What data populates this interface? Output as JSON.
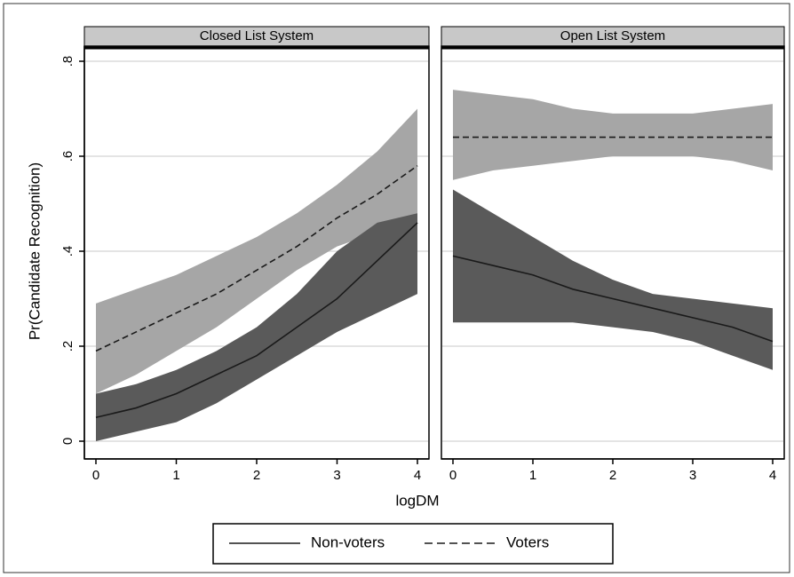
{
  "chart_data": [
    {
      "type": "line",
      "title": "Closed List System",
      "x_label": "logDM",
      "y_label": "Pr(Candidate Recognition)",
      "x": [
        0,
        0.5,
        1,
        1.5,
        2,
        2.5,
        3,
        3.5,
        4
      ],
      "xlim": [
        0,
        4
      ],
      "xticks": [
        0,
        1,
        2,
        3,
        4
      ],
      "ylim": [
        0,
        0.8
      ],
      "yticks": [
        0,
        {
          "value": 0.2,
          "label": ".2"
        },
        {
          "value": 0.4,
          "label": ".4"
        },
        {
          "value": 0.6,
          "label": ".6"
        },
        {
          "value": 0.8,
          "label": ".8"
        }
      ],
      "grid": true,
      "legend": "bottom",
      "series": [
        {
          "name": "Voters",
          "color": "#1a1a1a",
          "dashed": true,
          "band_color": "#a6a6a6",
          "values": [
            0.19,
            0.23,
            0.27,
            0.31,
            0.36,
            0.41,
            0.47,
            0.52,
            0.58
          ],
          "lower": [
            0.1,
            0.14,
            0.19,
            0.24,
            0.3,
            0.36,
            0.41,
            0.44,
            0.47
          ],
          "upper": [
            0.29,
            0.32,
            0.35,
            0.39,
            0.43,
            0.48,
            0.54,
            0.61,
            0.7
          ]
        },
        {
          "name": "Non-voters",
          "color": "#1a1a1a",
          "dashed": false,
          "band_color": "#5a5a5a",
          "values": [
            0.05,
            0.07,
            0.1,
            0.14,
            0.18,
            0.24,
            0.3,
            0.38,
            0.46
          ],
          "lower": [
            0.0,
            0.02,
            0.04,
            0.08,
            0.13,
            0.18,
            0.23,
            0.27,
            0.31
          ],
          "upper": [
            0.1,
            0.12,
            0.15,
            0.19,
            0.24,
            0.31,
            0.4,
            0.46,
            0.48
          ]
        }
      ]
    },
    {
      "type": "line",
      "title": "Open List System",
      "x": [
        0,
        0.5,
        1,
        1.5,
        2,
        2.5,
        3,
        3.5,
        4
      ],
      "xlim": [
        0,
        4
      ],
      "xticks": [
        0,
        1,
        2,
        3,
        4
      ],
      "ylim": [
        0,
        0.8
      ],
      "grid": true,
      "series": [
        {
          "color": "#1a1a1a",
          "dashed": true,
          "band_color": "#a6a6a6",
          "values": [
            0.64,
            0.64,
            0.64,
            0.64,
            0.64,
            0.64,
            0.64,
            0.64,
            0.64
          ],
          "lower": [
            0.55,
            0.57,
            0.58,
            0.59,
            0.6,
            0.6,
            0.6,
            0.59,
            0.57
          ],
          "upper": [
            0.74,
            0.73,
            0.72,
            0.7,
            0.69,
            0.69,
            0.69,
            0.7,
            0.71
          ]
        },
        {
          "color": "#1a1a1a",
          "dashed": false,
          "band_color": "#5a5a5a",
          "values": [
            0.39,
            0.37,
            0.35,
            0.32,
            0.3,
            0.28,
            0.26,
            0.24,
            0.21
          ],
          "lower": [
            0.25,
            0.25,
            0.25,
            0.25,
            0.24,
            0.23,
            0.21,
            0.18,
            0.15
          ],
          "upper": [
            0.53,
            0.48,
            0.43,
            0.38,
            0.34,
            0.31,
            0.3,
            0.29,
            0.28
          ]
        }
      ]
    }
  ]
}
